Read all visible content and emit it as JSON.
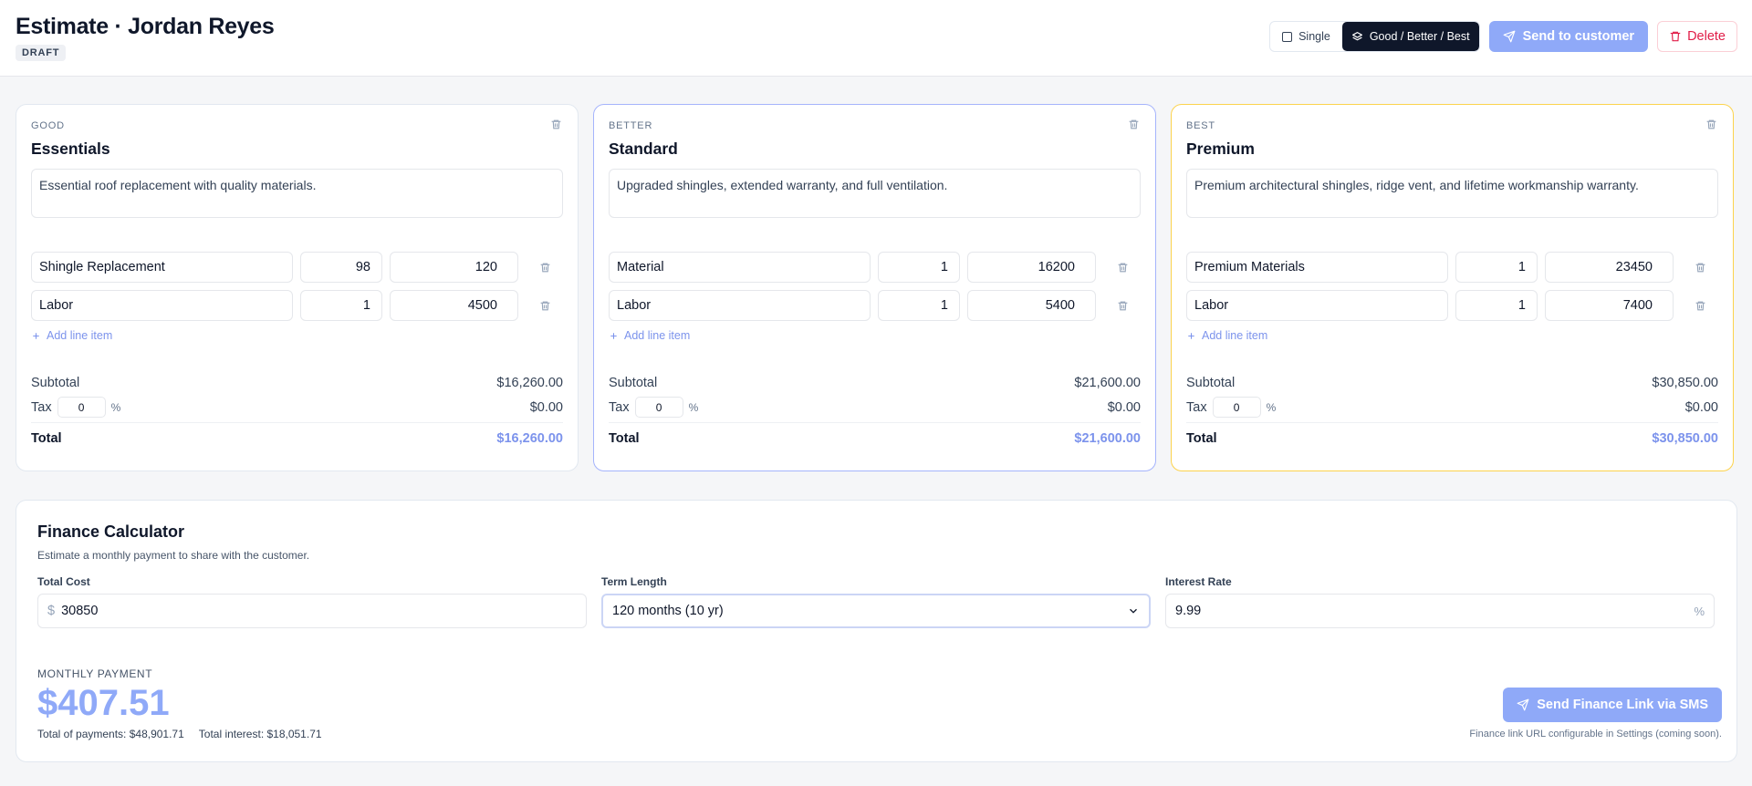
{
  "header": {
    "title": "Estimate · Jordan Reyes",
    "status_badge": "DRAFT",
    "mode_single_label": "Single",
    "mode_gbb_label": "Good / Better / Best",
    "send_label": "Send to customer",
    "delete_label": "Delete"
  },
  "tiers": [
    {
      "tag": "GOOD",
      "name": "Essentials",
      "description": "Essential roof replacement with quality materials.",
      "items": [
        {
          "name": "Shingle Replacement",
          "qty": "98",
          "price": "120"
        },
        {
          "name": "Labor",
          "qty": "1",
          "price": "4500"
        }
      ],
      "add_item_label": "Add line item",
      "subtotal_label": "Subtotal",
      "subtotal": "$16,260.00",
      "tax_label": "Tax",
      "tax_rate": "0",
      "tax_pct": "%",
      "tax_amount": "$0.00",
      "total_label": "Total",
      "total": "$16,260.00"
    },
    {
      "tag": "BETTER",
      "name": "Standard",
      "description": "Upgraded shingles, extended warranty, and full ventilation.",
      "items": [
        {
          "name": "Material",
          "qty": "1",
          "price": "16200"
        },
        {
          "name": "Labor",
          "qty": "1",
          "price": "5400"
        }
      ],
      "add_item_label": "Add line item",
      "subtotal_label": "Subtotal",
      "subtotal": "$21,600.00",
      "tax_label": "Tax",
      "tax_rate": "0",
      "tax_pct": "%",
      "tax_amount": "$0.00",
      "total_label": "Total",
      "total": "$21,600.00"
    },
    {
      "tag": "BEST",
      "name": "Premium",
      "description": "Premium architectural shingles, ridge vent, and lifetime workmanship warranty.",
      "items": [
        {
          "name": "Premium Materials",
          "qty": "1",
          "price": "23450"
        },
        {
          "name": "Labor",
          "qty": "1",
          "price": "7400"
        }
      ],
      "add_item_label": "Add line item",
      "subtotal_label": "Subtotal",
      "subtotal": "$30,850.00",
      "tax_label": "Tax",
      "tax_rate": "0",
      "tax_pct": "%",
      "tax_amount": "$0.00",
      "total_label": "Total",
      "total": "$30,850.00"
    }
  ],
  "finance": {
    "title": "Finance Calculator",
    "subtitle": "Estimate a monthly payment to share with the customer.",
    "total_cost_label": "Total Cost",
    "total_cost_prefix": "$",
    "total_cost": "30850",
    "term_label": "Term Length",
    "term_value": "120 months (10 yr)",
    "rate_label": "Interest Rate",
    "rate_value": "9.99",
    "rate_suffix": "%",
    "monthly_label": "MONTHLY PAYMENT",
    "monthly_value": "$407.51",
    "total_payments": "Total of payments: $48,901.71",
    "total_interest": "Total interest: $18,051.71",
    "sms_button": "Send Finance Link via SMS",
    "note": "Finance link URL configurable in Settings (coming soon)."
  },
  "colors": {
    "accent": "#8fa9f8",
    "accent_text": "#7c93ec",
    "danger": "#e11d48",
    "better_border": "#a5b4fc",
    "best_border": "#fcd34d"
  }
}
